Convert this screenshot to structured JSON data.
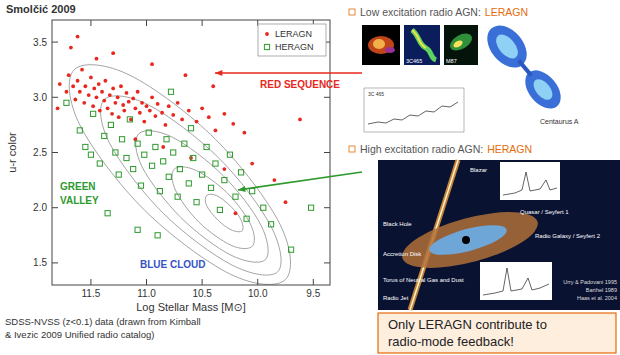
{
  "chart_data": {
    "type": "scatter",
    "title": "Smolčić 2009",
    "x_label": "Log Stellar Mass [M⊙]",
    "y_label": "u-r color",
    "xlim": [
      11.85,
      9.35
    ],
    "xticks": [
      11.5,
      {
        "value": 11,
        "label": "11.0"
      },
      10.5,
      {
        "value": 10,
        "label": "10.0"
      },
      9.5
    ],
    "ylim": [
      1.3,
      3.7
    ],
    "yticks": [
      1.5,
      {
        "value": 2,
        "label": "2.0"
      },
      2.5,
      {
        "value": 3,
        "label": "3.0"
      },
      3.5
    ],
    "grid": false,
    "legend": "upper right",
    "series": [
      {
        "name": "LERAGN",
        "color": "#e8281e",
        "marker": "circle",
        "x": [
          11.78,
          11.72,
          11.7,
          11.66,
          11.64,
          11.62,
          11.6,
          11.58,
          11.56,
          11.55,
          11.52,
          11.5,
          11.48,
          11.47,
          11.45,
          11.43,
          11.42,
          11.4,
          11.38,
          11.37,
          11.35,
          11.33,
          11.31,
          11.3,
          11.28,
          11.26,
          11.25,
          11.23,
          11.21,
          11.2,
          11.18,
          11.16,
          11.14,
          11.12,
          11.1,
          11.08,
          11.06,
          11.04,
          11.02,
          11.0,
          10.97,
          10.95,
          10.92,
          10.9,
          10.86,
          10.83,
          10.8,
          10.76,
          10.72,
          10.68,
          10.62,
          10.55,
          10.5,
          10.44,
          10.38,
          10.3,
          10.22,
          10.12,
          11.68,
          11.3,
          10.95,
          10.65,
          10.4,
          11.8,
          11.1,
          10.85,
          10.6,
          10.3,
          10.05,
          9.85,
          9.75,
          10.2,
          9.62,
          11.62,
          11.45
        ],
        "values": [
          3.12,
          3.05,
          3.2,
          3.1,
          2.98,
          3.15,
          3.05,
          3.25,
          2.95,
          3.1,
          3.02,
          3.18,
          2.92,
          3.08,
          3.0,
          3.12,
          2.88,
          3.05,
          2.97,
          3.15,
          2.9,
          3.02,
          2.85,
          3.08,
          2.95,
          3.0,
          2.82,
          3.1,
          2.93,
          2.88,
          3.04,
          2.96,
          2.8,
          2.99,
          2.9,
          3.05,
          2.86,
          2.95,
          2.78,
          2.92,
          2.88,
          3.0,
          2.83,
          2.94,
          2.86,
          2.75,
          2.92,
          2.84,
          2.95,
          2.8,
          2.88,
          2.78,
          2.9,
          2.82,
          2.7,
          2.85,
          2.76,
          2.68,
          3.45,
          3.4,
          3.3,
          3.2,
          3.1,
          2.9,
          2.62,
          2.55,
          2.45,
          2.35,
          2.4,
          2.25,
          2.05,
          1.95,
          2.8,
          3.55,
          3.35
        ]
      },
      {
        "name": "HERAGN",
        "color": "#2e9a2e",
        "marker": "square",
        "x": [
          11.72,
          11.6,
          11.55,
          11.48,
          11.42,
          11.38,
          11.32,
          11.28,
          11.25,
          11.22,
          11.18,
          11.15,
          11.12,
          11.08,
          11.05,
          11.02,
          10.98,
          10.95,
          10.92,
          10.88,
          10.85,
          10.82,
          10.8,
          10.76,
          10.72,
          10.7,
          10.66,
          10.62,
          10.58,
          10.55,
          10.5,
          10.46,
          10.42,
          10.38,
          10.34,
          10.3,
          10.25,
          10.2,
          10.15,
          10.1,
          10.05,
          9.95,
          9.88,
          9.52,
          11.35,
          11.08,
          10.9,
          11.5,
          10.6,
          10.78,
          9.7
        ],
        "values": [
          2.95,
          2.7,
          2.55,
          2.85,
          2.4,
          2.65,
          2.75,
          2.5,
          2.3,
          2.62,
          2.45,
          2.8,
          2.35,
          2.58,
          2.2,
          2.48,
          2.68,
          2.38,
          2.55,
          2.15,
          2.42,
          2.62,
          2.28,
          2.5,
          2.1,
          2.35,
          2.58,
          2.22,
          2.45,
          2.05,
          2.3,
          2.55,
          2.18,
          2.4,
          1.98,
          2.25,
          2.48,
          2.1,
          2.32,
          1.9,
          2.15,
          2.0,
          1.85,
          2.0,
          1.95,
          1.8,
          1.75,
          2.48,
          2.72,
          3.05,
          1.62
        ]
      }
    ],
    "contours": [
      {
        "x": [
          9.75,
          9.8,
          10.38,
          11.15,
          11.65,
          11.6,
          11.02,
          10.25
        ],
        "values": [
          1.35,
          1.85,
          2.62,
          3.2,
          3.25,
          2.75,
          1.98,
          1.4
        ]
      },
      {
        "x": [
          9.82,
          9.88,
          10.35,
          10.98,
          11.38,
          11.33,
          10.85,
          10.23
        ],
        "values": [
          1.42,
          1.83,
          2.45,
          2.93,
          2.98,
          2.58,
          1.95,
          1.48
        ]
      },
      {
        "x": [
          9.93,
          9.97,
          10.31,
          10.77,
          11.07,
          11.04,
          10.69,
          10.24
        ],
        "values": [
          1.53,
          1.84,
          2.29,
          2.64,
          2.67,
          2.37,
          1.91,
          1.57
        ]
      },
      {
        "x": [
          10.05,
          10.06,
          10.27,
          10.56,
          10.75,
          10.74,
          10.53,
          10.24
        ],
        "values": [
          1.65,
          1.84,
          2.13,
          2.34,
          2.35,
          2.16,
          1.87,
          1.66
        ]
      },
      {
        "x": [
          10.14,
          10.15,
          10.24,
          10.37,
          10.46,
          10.46,
          10.36,
          10.24
        ],
        "values": [
          1.79,
          1.89,
          2.01,
          2.11,
          2.11,
          2.02,
          1.89,
          1.8
        ]
      }
    ],
    "annotations": [
      {
        "lines": [
          "RED SEQUENCE"
        ],
        "color": "#e8281e"
      },
      {
        "lines": [
          "GREEN",
          "VALLEY"
        ],
        "color": "#2e9a2e"
      },
      {
        "lines": [
          "BLUE CLOUD"
        ],
        "color": "#3554c4"
      }
    ]
  },
  "slide": {
    "caption": [
      "SDSS-NVSS (z<0.1) data (drawn from Kimball",
      "& Ivezic 2009 Unified radio catalog)"
    ],
    "panels": [
      {
        "heading": "Low excitation radio AGN:",
        "highlight": "LERAGN",
        "image_labels": [
          "3C465",
          "M87",
          "Centaurus A"
        ],
        "spectrum_label": "3C 465"
      },
      {
        "heading": "High excitation radio AGN:",
        "highlight": "HERAGN",
        "diagram_labels": [
          "Blazar",
          "Quasar / Seyfert 1",
          "Radio Galaxy / Seyfert 2",
          "Black Hole",
          "Accretion Disk",
          "Torus of Neutral Gas and Dust",
          "Radio Jet"
        ],
        "credits": [
          "Urry & Padovani 1995",
          "Barthel 1989",
          "Haas et al. 2004"
        ]
      }
    ],
    "callout": [
      "Only LERAGN contribute to",
      "radio-mode feedback!"
    ]
  }
}
